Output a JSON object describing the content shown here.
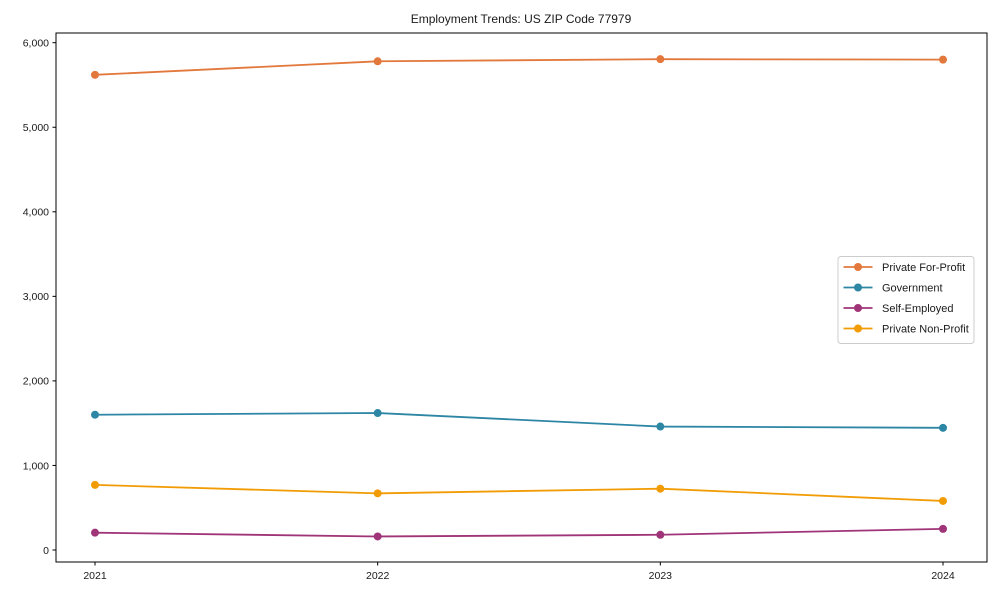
{
  "chart_data": {
    "type": "line",
    "title": "Employment Trends: US ZIP Code 77979",
    "xlabel": "",
    "ylabel": "",
    "x_tick_labels": [
      "2021",
      "2022",
      "2023",
      "2024"
    ],
    "y_ticks": [
      0,
      1000,
      2000,
      3000,
      4000,
      5000,
      6000
    ],
    "y_tick_labels": [
      "0",
      "1,000",
      "2,000",
      "3,000",
      "4,000",
      "5,000",
      "6,000"
    ],
    "ylim": [
      0,
      6000
    ],
    "grid": false,
    "legend_position": "center right",
    "marker": "circle",
    "series": [
      {
        "name": "Private For-Profit",
        "color": "#e2783c",
        "values": [
          5620,
          5780,
          5805,
          5800
        ]
      },
      {
        "name": "Government",
        "color": "#2e86a5",
        "values": [
          1600,
          1620,
          1460,
          1445
        ]
      },
      {
        "name": "Self-Employed",
        "color": "#a03478",
        "values": [
          205,
          160,
          180,
          250
        ]
      },
      {
        "name": "Private Non-Profit",
        "color": "#f29c05",
        "values": [
          770,
          670,
          725,
          580
        ]
      }
    ]
  }
}
